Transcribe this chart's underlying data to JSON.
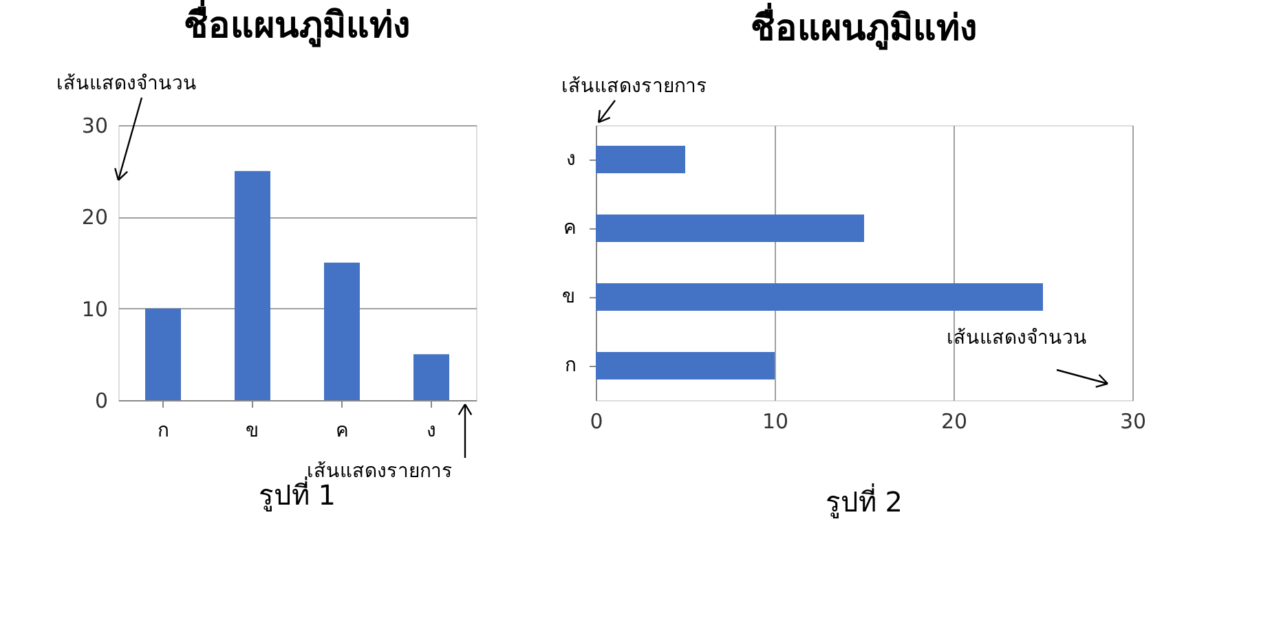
{
  "chart_data": [
    {
      "type": "bar",
      "title": "ชื่อแผนภูมิแท่ง",
      "categories": [
        "ก",
        "ข",
        "ค",
        "ง"
      ],
      "series": [
        {
          "color": "#4472c4",
          "values": [
            10,
            25,
            15,
            5
          ]
        }
      ],
      "ylim": [
        0,
        30
      ],
      "yticks": [
        0,
        10,
        20,
        30
      ],
      "grid": "y",
      "annotations": [
        "เส้นแสดงจำนวน",
        "เส้นแสดงรายการ",
        "รูปที่ 1"
      ]
    },
    {
      "type": "bar",
      "orientation": "horizontal",
      "title": "ชื่อแผนภูมิแท่ง",
      "categories": [
        "ง",
        "ค",
        "ข",
        "ก"
      ],
      "series": [
        {
          "color": "#4472c4",
          "values": [
            5,
            15,
            25,
            10
          ]
        }
      ],
      "xlim": [
        0,
        30
      ],
      "xticks": [
        0,
        10,
        20,
        30
      ],
      "grid": "x",
      "annotations": [
        "เส้นแสดงรายการ",
        "เส้นแสดงจำนวน",
        "รูปที่ 2"
      ]
    }
  ]
}
